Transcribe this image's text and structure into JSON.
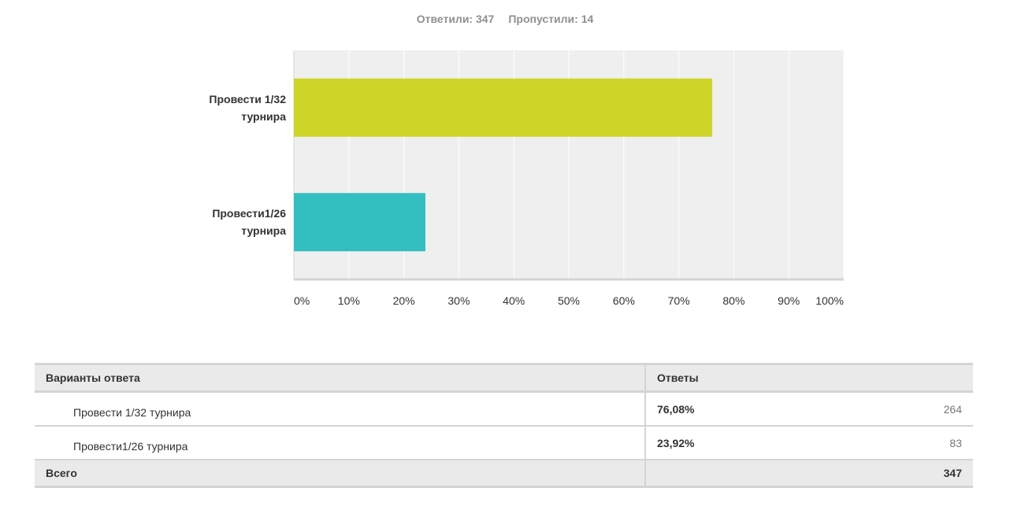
{
  "summary": {
    "answered_label": "Ответили: 347",
    "skipped_label": "Пропустили: 14"
  },
  "chart_data": {
    "type": "bar",
    "orientation": "horizontal",
    "categories": [
      "Провести 1/32 турнира",
      "Провести1/26 турнира"
    ],
    "category_lines": [
      [
        "Провести 1/32",
        "турнира"
      ],
      [
        "Провести1/26",
        "турнира"
      ]
    ],
    "values": [
      76.08,
      23.92
    ],
    "colors": [
      "#cdd628",
      "#33bec0"
    ],
    "xlim": [
      0,
      100
    ],
    "xticks": [
      0,
      10,
      20,
      30,
      40,
      50,
      60,
      70,
      80,
      90,
      100
    ],
    "xtick_labels": [
      "0%",
      "10%",
      "20%",
      "30%",
      "40%",
      "50%",
      "60%",
      "70%",
      "80%",
      "90%",
      "100%"
    ],
    "grid": true,
    "title": "",
    "xlabel": "",
    "ylabel": ""
  },
  "table": {
    "headers": [
      "Варианты ответа",
      "Ответы"
    ],
    "rows": [
      {
        "option": "Провести 1/32 турнира",
        "percent": "76,08%",
        "count": "264"
      },
      {
        "option": "Провести1/26 турнира",
        "percent": "23,92%",
        "count": "83"
      }
    ],
    "total_label": "Всего",
    "total_value": "347"
  }
}
